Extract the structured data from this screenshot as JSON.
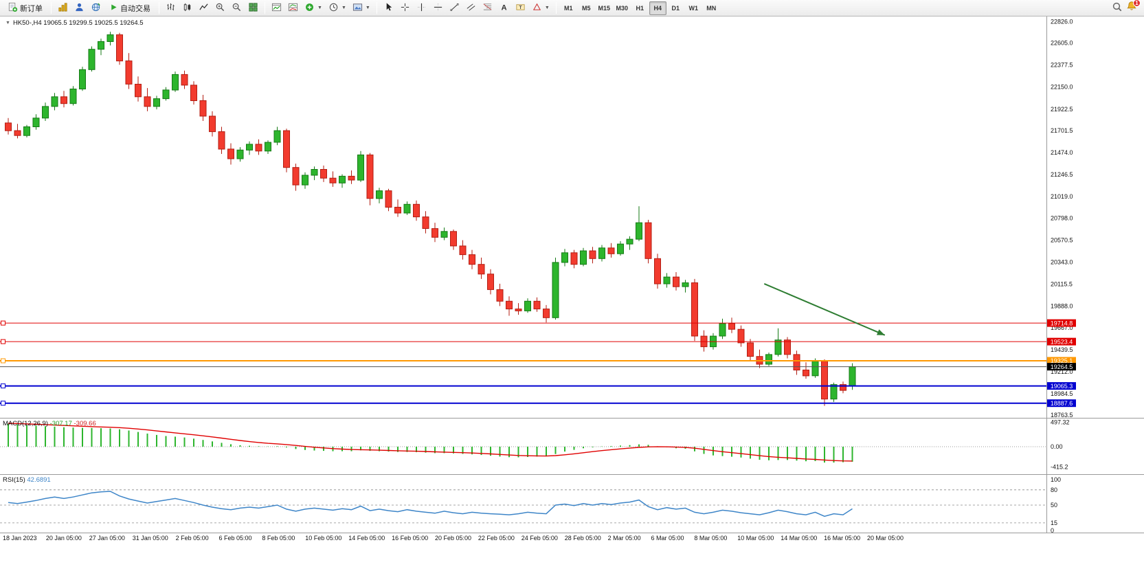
{
  "toolbar": {
    "new_order": "新订单",
    "auto_trading": "自动交易",
    "timeframes": [
      "M1",
      "M5",
      "M15",
      "M30",
      "H1",
      "H4",
      "D1",
      "W1",
      "MN"
    ],
    "active_timeframe": "H4",
    "notification_badge": "1"
  },
  "chart_header": {
    "symbol_period": "HK50-,H4",
    "ohlc": "19065.5 19299.5 19025.5 19264.5"
  },
  "chart_data": {
    "type": "candlestick",
    "symbol": "HK50-",
    "timeframe": "H4",
    "last_bar": {
      "open": 19065.5,
      "high": 19299.5,
      "low": 19025.5,
      "close": 19264.5
    },
    "colors": {
      "up": "#2db52d",
      "up_border": "#157a15",
      "down": "#f23b2e",
      "down_border": "#b31d12",
      "macd_hist": "#2db52d",
      "macd_signal": "#e00000",
      "rsi": "#3d85c8",
      "level_red": "#e00000",
      "level_orange": "#ff9800",
      "level_blue": "#0000d0"
    },
    "y_axis": [
      22826.0,
      22605.0,
      22377.5,
      22150.0,
      21922.5,
      21701.5,
      21474.0,
      21246.5,
      21019.0,
      20798.0,
      20570.5,
      20343.0,
      20115.5,
      19888.0,
      19667.0,
      19439.5,
      19212.0,
      18984.5,
      18763.5
    ],
    "x_axis_labels": [
      "18 Jan 2023",
      "20 Jan 05:00",
      "27 Jan 05:00",
      "31 Jan 05:00",
      "2 Feb 05:00",
      "6 Feb 05:00",
      "8 Feb 05:00",
      "10 Feb 05:00",
      "14 Feb 05:00",
      "16 Feb 05:00",
      "20 Feb 05:00",
      "22 Feb 05:00",
      "24 Feb 05:00",
      "28 Feb 05:00",
      "2 Mar 05:00",
      "6 Mar 05:00",
      "8 Mar 05:00",
      "10 Mar 05:00",
      "14 Mar 05:00",
      "16 Mar 05:00",
      "20 Mar 05:00"
    ],
    "candles": [
      [
        21780,
        21830,
        21660,
        21700
      ],
      [
        21700,
        21770,
        21620,
        21650
      ],
      [
        21650,
        21760,
        21630,
        21740
      ],
      [
        21740,
        21870,
        21710,
        21830
      ],
      [
        21830,
        21990,
        21800,
        21950
      ],
      [
        21950,
        22090,
        21910,
        22050
      ],
      [
        22050,
        22110,
        21940,
        21980
      ],
      [
        21980,
        22160,
        21960,
        22130
      ],
      [
        22130,
        22360,
        22110,
        22330
      ],
      [
        22330,
        22570,
        22310,
        22540
      ],
      [
        22540,
        22650,
        22480,
        22620
      ],
      [
        22620,
        22720,
        22580,
        22690
      ],
      [
        22690,
        22710,
        22380,
        22420
      ],
      [
        22420,
        22500,
        22130,
        22180
      ],
      [
        22180,
        22260,
        22000,
        22050
      ],
      [
        22050,
        22140,
        21900,
        21950
      ],
      [
        21950,
        22060,
        21920,
        22030
      ],
      [
        22030,
        22150,
        22010,
        22120
      ],
      [
        22120,
        22310,
        22100,
        22280
      ],
      [
        22280,
        22320,
        22130,
        22170
      ],
      [
        22170,
        22210,
        21970,
        22010
      ],
      [
        22010,
        22070,
        21800,
        21850
      ],
      [
        21850,
        21900,
        21640,
        21690
      ],
      [
        21690,
        21740,
        21460,
        21510
      ],
      [
        21510,
        21570,
        21350,
        21410
      ],
      [
        21410,
        21530,
        21380,
        21500
      ],
      [
        21500,
        21590,
        21450,
        21560
      ],
      [
        21560,
        21610,
        21450,
        21490
      ],
      [
        21490,
        21600,
        21460,
        21580
      ],
      [
        21580,
        21740,
        21550,
        21700
      ],
      [
        21700,
        21720,
        21270,
        21320
      ],
      [
        21320,
        21360,
        21080,
        21140
      ],
      [
        21140,
        21270,
        21100,
        21240
      ],
      [
        21240,
        21330,
        21190,
        21300
      ],
      [
        21300,
        21340,
        21170,
        21210
      ],
      [
        21210,
        21280,
        21120,
        21160
      ],
      [
        21160,
        21250,
        21110,
        21230
      ],
      [
        21230,
        21290,
        21150,
        21190
      ],
      [
        21190,
        21490,
        21170,
        21450
      ],
      [
        21450,
        21470,
        20930,
        21000
      ],
      [
        21000,
        21110,
        20950,
        21080
      ],
      [
        21080,
        21100,
        20870,
        20910
      ],
      [
        20910,
        20990,
        20810,
        20850
      ],
      [
        20850,
        20970,
        20830,
        20940
      ],
      [
        20940,
        20980,
        20770,
        20810
      ],
      [
        20810,
        20870,
        20640,
        20690
      ],
      [
        20690,
        20750,
        20550,
        20600
      ],
      [
        20600,
        20700,
        20570,
        20660
      ],
      [
        20660,
        20680,
        20470,
        20510
      ],
      [
        20510,
        20570,
        20370,
        20420
      ],
      [
        20420,
        20470,
        20270,
        20320
      ],
      [
        20320,
        20390,
        20170,
        20220
      ],
      [
        20220,
        20270,
        20010,
        20060
      ],
      [
        20060,
        20120,
        19890,
        19940
      ],
      [
        19940,
        19990,
        19790,
        19860
      ],
      [
        19860,
        19920,
        19800,
        19840
      ],
      [
        19840,
        19970,
        19820,
        19940
      ],
      [
        19940,
        19980,
        19830,
        19860
      ],
      [
        19860,
        19900,
        19720,
        19770
      ],
      [
        19770,
        20390,
        19750,
        20340
      ],
      [
        20340,
        20480,
        20300,
        20440
      ],
      [
        20440,
        20470,
        20280,
        20320
      ],
      [
        20320,
        20490,
        20300,
        20460
      ],
      [
        20460,
        20500,
        20330,
        20380
      ],
      [
        20380,
        20520,
        20350,
        20490
      ],
      [
        20490,
        20540,
        20390,
        20430
      ],
      [
        20430,
        20560,
        20410,
        20530
      ],
      [
        20530,
        20610,
        20470,
        20580
      ],
      [
        20580,
        20920,
        20560,
        20750
      ],
      [
        20750,
        20780,
        20330,
        20380
      ],
      [
        20380,
        20430,
        20070,
        20120
      ],
      [
        20120,
        20230,
        20080,
        20190
      ],
      [
        20190,
        20240,
        20050,
        20090
      ],
      [
        20090,
        20160,
        20030,
        20130
      ],
      [
        20130,
        20170,
        19530,
        19580
      ],
      [
        19580,
        19640,
        19420,
        19470
      ],
      [
        19470,
        19610,
        19440,
        19580
      ],
      [
        19580,
        19760,
        19550,
        19710
      ],
      [
        19710,
        19770,
        19610,
        19650
      ],
      [
        19650,
        19690,
        19470,
        19510
      ],
      [
        19510,
        19550,
        19320,
        19370
      ],
      [
        19370,
        19440,
        19250,
        19290
      ],
      [
        19290,
        19410,
        19270,
        19390
      ],
      [
        19390,
        19660,
        19370,
        19540
      ],
      [
        19540,
        19570,
        19350,
        19390
      ],
      [
        19390,
        19430,
        19180,
        19230
      ],
      [
        19230,
        19310,
        19140,
        19170
      ],
      [
        19170,
        19350,
        19150,
        19320
      ],
      [
        19320,
        19340,
        18860,
        18930
      ],
      [
        18930,
        19100,
        18900,
        19080
      ],
      [
        19080,
        19110,
        18990,
        19020
      ],
      [
        19065.5,
        19299.5,
        19025.5,
        19264.5
      ]
    ],
    "levels": [
      {
        "price": 19714.8,
        "color": "#e00000",
        "width": 1,
        "handle": true
      },
      {
        "price": 19523.4,
        "color": "#e00000",
        "width": 1,
        "handle": true
      },
      {
        "price": 19325.1,
        "color": "#ff9800",
        "width": 2,
        "handle": true
      },
      {
        "price": 19264.5,
        "color": "#555555",
        "width": 1,
        "badge_bg": "#000000"
      },
      {
        "price": 19065.3,
        "color": "#0000d0",
        "width": 2,
        "handle": true
      },
      {
        "price": 18887.6,
        "color": "#0000d0",
        "width": 2,
        "handle": true
      }
    ],
    "arrow": {
      "from_index": 81.5,
      "from_price": 20120,
      "to_index": 94.5,
      "to_price": 19590,
      "color": "#2e7d32"
    },
    "macd": {
      "title": "MACD(12,26,9)",
      "value_main": "-307.17",
      "value_signal": "-309.66",
      "axis": [
        {
          "v": 497.32,
          "t": "497.32"
        },
        {
          "v": 0,
          "t": "0.00"
        },
        {
          "v": -415.2,
          "t": "-415.2"
        }
      ],
      "histogram": [
        470,
        455,
        440,
        428,
        418,
        410,
        398,
        390,
        385,
        382,
        378,
        372,
        355,
        330,
        300,
        268,
        240,
        218,
        205,
        188,
        165,
        138,
        108,
        78,
        50,
        30,
        18,
        8,
        5,
        10,
        -15,
        -48,
        -68,
        -78,
        -85,
        -92,
        -92,
        -92,
        -75,
        -85,
        -92,
        -100,
        -108,
        -108,
        -112,
        -122,
        -132,
        -132,
        -138,
        -148,
        -158,
        -170,
        -185,
        -202,
        -215,
        -218,
        -210,
        -202,
        -200,
        -150,
        -100,
        -65,
        -32,
        -12,
        5,
        12,
        22,
        32,
        48,
        38,
        8,
        -12,
        -32,
        -42,
        -95,
        -148,
        -178,
        -192,
        -205,
        -222,
        -245,
        -268,
        -278,
        -272,
        -272,
        -285,
        -298,
        -295,
        -325,
        -325,
        -318,
        -307.17
      ]
    },
    "rsi": {
      "title": "RSI(15)",
      "value": "42.6891",
      "levels": [
        80,
        50,
        15
      ],
      "axis": [
        {
          "v": 100,
          "t": "100"
        },
        {
          "v": 80,
          "t": "80"
        },
        {
          "v": 50,
          "t": "50"
        },
        {
          "v": 15,
          "t": "15"
        },
        {
          "v": 0,
          "t": "0"
        }
      ],
      "values": [
        55,
        53,
        56,
        59,
        63,
        66,
        63,
        66,
        70,
        74,
        76,
        77,
        68,
        62,
        58,
        54,
        57,
        60,
        63,
        59,
        55,
        50,
        46,
        43,
        41,
        44,
        46,
        44,
        47,
        50,
        42,
        38,
        42,
        44,
        42,
        40,
        43,
        41,
        48,
        39,
        42,
        39,
        37,
        41,
        38,
        36,
        34,
        38,
        35,
        33,
        36,
        34,
        33,
        32,
        31,
        33,
        36,
        34,
        33,
        50,
        52,
        49,
        53,
        50,
        53,
        51,
        54,
        56,
        60,
        47,
        41,
        45,
        42,
        44,
        36,
        33,
        36,
        40,
        38,
        35,
        33,
        31,
        35,
        40,
        37,
        33,
        31,
        36,
        28,
        33,
        31,
        42.6891
      ]
    }
  }
}
